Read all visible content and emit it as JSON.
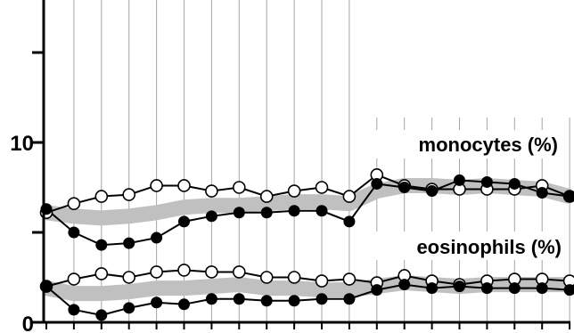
{
  "chart_data": {
    "type": "line",
    "ylim": [
      0,
      18
    ],
    "grid": "vertical",
    "y_ticks": [
      0,
      10
    ],
    "y_tick_labels": [
      "0",
      "10"
    ],
    "x": [
      1,
      2,
      3,
      4,
      5,
      6,
      7,
      8,
      9,
      10,
      11,
      12,
      13,
      14,
      15,
      16,
      17,
      18,
      19,
      20
    ],
    "groups": [
      {
        "label": "monocytes (%)",
        "band_center": [
          6.1,
          5.9,
          5.8,
          5.9,
          6.1,
          6.4,
          6.5,
          6.5,
          6.6,
          6.7,
          6.7,
          6.6,
          7.3,
          7.6,
          7.6,
          7.5,
          7.6,
          7.5,
          7.4,
          7.0
        ],
        "open_series": [
          6.1,
          6.6,
          7.0,
          7.1,
          7.6,
          7.6,
          7.3,
          7.5,
          7.0,
          7.3,
          7.5,
          7.0,
          8.2,
          7.6,
          7.4,
          7.4,
          7.4,
          7.4,
          7.6,
          7.0
        ],
        "filled_series": [
          6.3,
          5.0,
          4.3,
          4.4,
          4.7,
          5.6,
          5.9,
          6.1,
          6.1,
          6.2,
          6.2,
          5.6,
          7.7,
          7.5,
          7.3,
          7.9,
          7.8,
          7.7,
          7.2,
          7.0
        ]
      },
      {
        "label": "eosinophils (%)",
        "band_center": [
          1.9,
          1.6,
          1.6,
          1.7,
          1.9,
          1.9,
          2.0,
          2.1,
          1.9,
          1.9,
          1.8,
          1.8,
          2.0,
          2.2,
          2.1,
          2.0,
          2.1,
          2.1,
          2.1,
          2.1
        ],
        "open_series": [
          2.0,
          2.4,
          2.7,
          2.5,
          2.8,
          2.9,
          2.8,
          2.8,
          2.5,
          2.5,
          2.3,
          2.4,
          2.2,
          2.6,
          2.3,
          2.1,
          2.3,
          2.4,
          2.4,
          2.3
        ],
        "filled_series": [
          2.0,
          0.7,
          0.4,
          0.8,
          1.1,
          1.0,
          1.3,
          1.3,
          1.2,
          1.2,
          1.3,
          1.3,
          1.8,
          2.1,
          1.9,
          2.0,
          1.9,
          1.9,
          1.9,
          1.8
        ]
      }
    ]
  },
  "colors": {
    "band": "#c0c0c0",
    "line": "#000000",
    "grid": "#a6a6a6",
    "axis": "#000000"
  }
}
